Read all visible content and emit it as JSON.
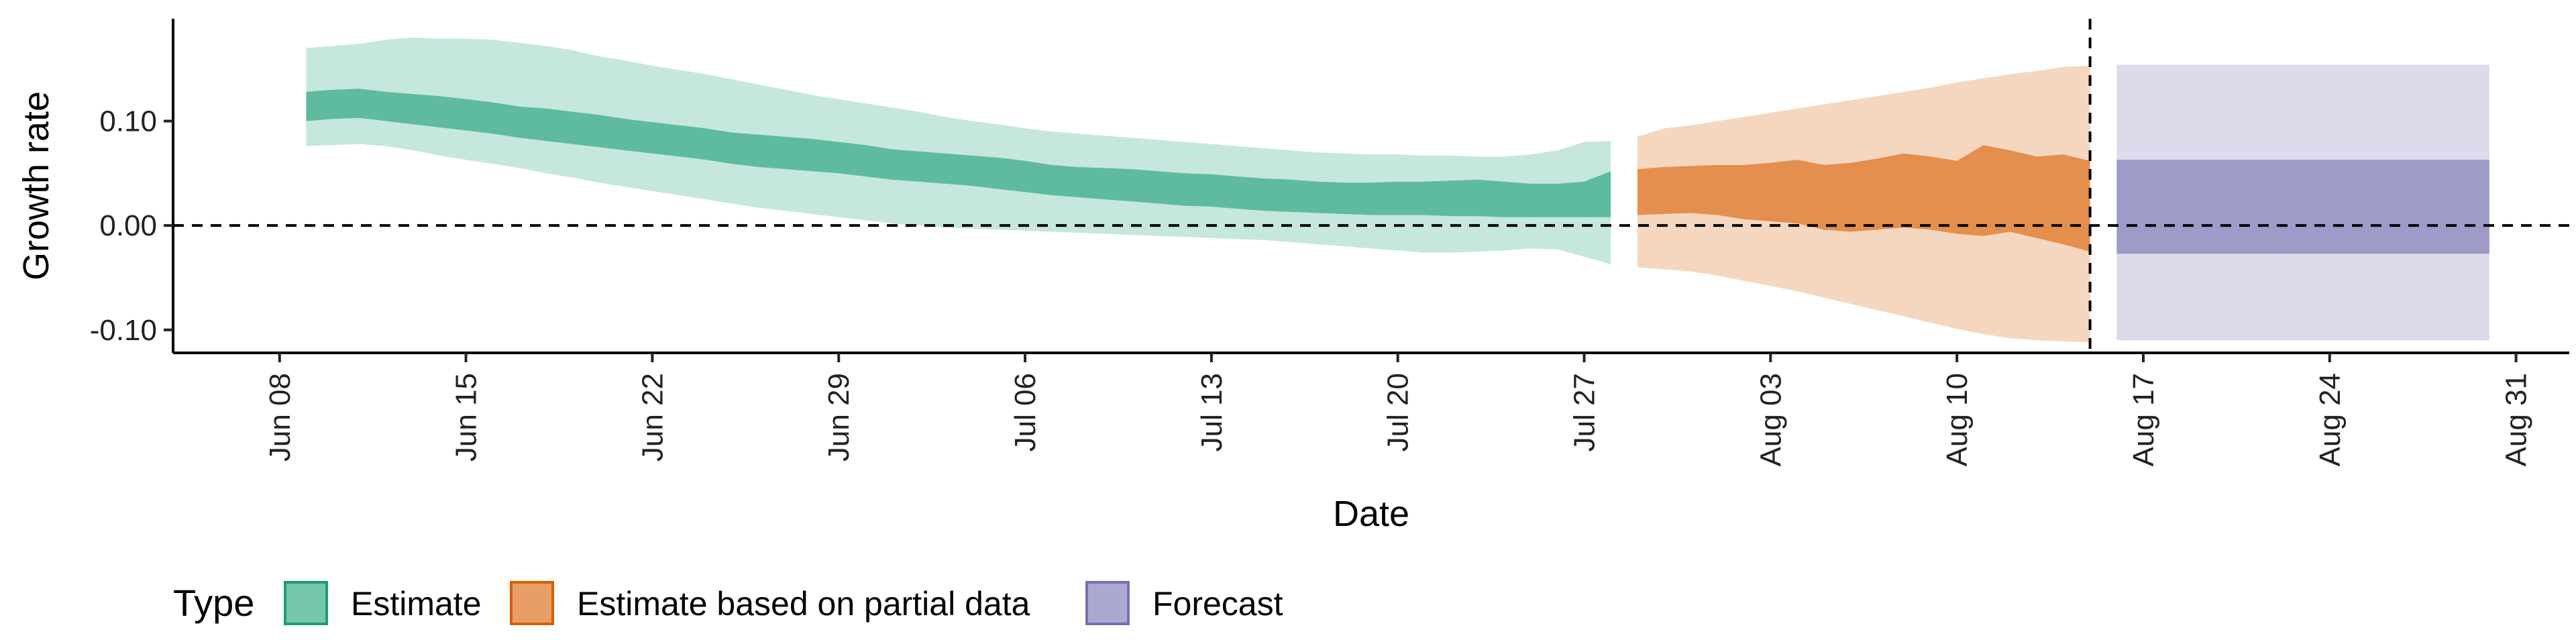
{
  "chart_data": {
    "type": "area",
    "xlabel": "Date",
    "ylabel": "Growth rate",
    "ylim": [
      -0.122,
      0.198
    ],
    "xlim": [
      "2020-06-04",
      "2020-09-02"
    ],
    "y_ticks": [
      -0.1,
      0.0,
      0.1
    ],
    "y_tick_labels": [
      "-0.10",
      "0.00",
      "0.10"
    ],
    "x_ticks": [
      "2020-06-08",
      "2020-06-15",
      "2020-06-22",
      "2020-06-29",
      "2020-07-06",
      "2020-07-13",
      "2020-07-20",
      "2020-07-27",
      "2020-08-03",
      "2020-08-10",
      "2020-08-17",
      "2020-08-24",
      "2020-08-31"
    ],
    "x_tick_labels": [
      "Jun 08",
      "Jun 15",
      "Jun 22",
      "Jun 29",
      "Jul 06",
      "Jul 13",
      "Jul 20",
      "Jul 27",
      "Aug 03",
      "Aug 10",
      "Aug 17",
      "Aug 24",
      "Aug 31"
    ],
    "reference_lines": {
      "horizontal_y": 0.0,
      "vertical_x": "2020-08-15"
    },
    "grid": false,
    "legend_position": "bottom-left",
    "legend_title": "Type",
    "series": [
      {
        "name": "Estimate",
        "color": "#1b9e77",
        "x": [
          "2020-06-09",
          "2020-06-10",
          "2020-06-11",
          "2020-06-12",
          "2020-06-13",
          "2020-06-14",
          "2020-06-15",
          "2020-06-16",
          "2020-06-17",
          "2020-06-18",
          "2020-06-19",
          "2020-06-20",
          "2020-06-21",
          "2020-06-22",
          "2020-06-23",
          "2020-06-24",
          "2020-06-25",
          "2020-06-26",
          "2020-06-27",
          "2020-06-28",
          "2020-06-29",
          "2020-06-30",
          "2020-07-01",
          "2020-07-02",
          "2020-07-03",
          "2020-07-04",
          "2020-07-05",
          "2020-07-06",
          "2020-07-07",
          "2020-07-08",
          "2020-07-09",
          "2020-07-10",
          "2020-07-11",
          "2020-07-12",
          "2020-07-13",
          "2020-07-14",
          "2020-07-15",
          "2020-07-16",
          "2020-07-17",
          "2020-07-18",
          "2020-07-19",
          "2020-07-20",
          "2020-07-21",
          "2020-07-22",
          "2020-07-23",
          "2020-07-24",
          "2020-07-25",
          "2020-07-26",
          "2020-07-27",
          "2020-07-28"
        ],
        "outer_upper": [
          0.17,
          0.172,
          0.174,
          0.178,
          0.18,
          0.179,
          0.179,
          0.178,
          0.175,
          0.172,
          0.168,
          0.162,
          0.158,
          0.153,
          0.149,
          0.145,
          0.14,
          0.135,
          0.13,
          0.125,
          0.121,
          0.117,
          0.113,
          0.109,
          0.104,
          0.1,
          0.097,
          0.093,
          0.09,
          0.088,
          0.086,
          0.084,
          0.082,
          0.08,
          0.078,
          0.076,
          0.074,
          0.072,
          0.07,
          0.069,
          0.068,
          0.068,
          0.067,
          0.067,
          0.066,
          0.066,
          0.068,
          0.072,
          0.08,
          0.081
        ],
        "inner_upper": [
          0.128,
          0.13,
          0.131,
          0.128,
          0.126,
          0.124,
          0.121,
          0.118,
          0.114,
          0.112,
          0.109,
          0.106,
          0.102,
          0.099,
          0.096,
          0.093,
          0.089,
          0.087,
          0.085,
          0.083,
          0.08,
          0.077,
          0.073,
          0.071,
          0.069,
          0.067,
          0.065,
          0.062,
          0.058,
          0.056,
          0.055,
          0.054,
          0.052,
          0.05,
          0.049,
          0.047,
          0.045,
          0.044,
          0.042,
          0.041,
          0.041,
          0.042,
          0.042,
          0.043,
          0.044,
          0.042,
          0.04,
          0.04,
          0.042,
          0.052
        ],
        "inner_lower": [
          0.1,
          0.102,
          0.103,
          0.1,
          0.097,
          0.094,
          0.091,
          0.088,
          0.084,
          0.081,
          0.078,
          0.075,
          0.072,
          0.069,
          0.066,
          0.063,
          0.059,
          0.056,
          0.054,
          0.052,
          0.05,
          0.047,
          0.044,
          0.042,
          0.04,
          0.038,
          0.035,
          0.032,
          0.029,
          0.027,
          0.025,
          0.023,
          0.021,
          0.019,
          0.018,
          0.016,
          0.014,
          0.013,
          0.012,
          0.011,
          0.01,
          0.01,
          0.01,
          0.009,
          0.009,
          0.008,
          0.008,
          0.008,
          0.008,
          0.008
        ],
        "outer_lower": [
          0.076,
          0.077,
          0.078,
          0.076,
          0.072,
          0.067,
          0.063,
          0.059,
          0.055,
          0.05,
          0.046,
          0.041,
          0.037,
          0.033,
          0.029,
          0.025,
          0.021,
          0.017,
          0.014,
          0.011,
          0.008,
          0.005,
          0.002,
          0.0,
          -0.002,
          -0.003,
          -0.004,
          -0.005,
          -0.006,
          -0.007,
          -0.008,
          -0.009,
          -0.01,
          -0.011,
          -0.012,
          -0.013,
          -0.014,
          -0.016,
          -0.018,
          -0.02,
          -0.022,
          -0.024,
          -0.026,
          -0.026,
          -0.025,
          -0.024,
          -0.022,
          -0.023,
          -0.03,
          -0.037
        ]
      },
      {
        "name": "Estimate based on partial data",
        "color": "#d95f02",
        "x": [
          "2020-07-29",
          "2020-07-30",
          "2020-07-31",
          "2020-08-01",
          "2020-08-02",
          "2020-08-03",
          "2020-08-04",
          "2020-08-05",
          "2020-08-06",
          "2020-08-07",
          "2020-08-08",
          "2020-08-09",
          "2020-08-10",
          "2020-08-11",
          "2020-08-12",
          "2020-08-13",
          "2020-08-14",
          "2020-08-15"
        ],
        "outer_upper": [
          0.085,
          0.093,
          0.096,
          0.1,
          0.104,
          0.108,
          0.112,
          0.116,
          0.12,
          0.124,
          0.128,
          0.132,
          0.137,
          0.141,
          0.145,
          0.148,
          0.152,
          0.153
        ],
        "inner_upper": [
          0.054,
          0.056,
          0.057,
          0.058,
          0.058,
          0.06,
          0.063,
          0.058,
          0.06,
          0.064,
          0.069,
          0.066,
          0.062,
          0.077,
          0.072,
          0.066,
          0.068,
          0.062
        ],
        "inner_lower": [
          0.01,
          0.011,
          0.012,
          0.01,
          0.006,
          0.004,
          0.002,
          -0.004,
          -0.006,
          -0.004,
          -0.002,
          -0.004,
          -0.008,
          -0.01,
          -0.006,
          -0.012,
          -0.018,
          -0.025
        ],
        "outer_lower": [
          -0.04,
          -0.042,
          -0.044,
          -0.048,
          -0.053,
          -0.058,
          -0.063,
          -0.069,
          -0.075,
          -0.081,
          -0.087,
          -0.093,
          -0.099,
          -0.104,
          -0.108,
          -0.11,
          -0.111,
          -0.112
        ]
      },
      {
        "name": "Forecast",
        "color": "#7570b3",
        "x": [
          "2020-08-16",
          "2020-08-30"
        ],
        "outer_upper": [
          0.154,
          0.154
        ],
        "inner_upper": [
          0.063,
          0.063
        ],
        "inner_lower": [
          -0.027,
          -0.027
        ],
        "outer_lower": [
          -0.11,
          -0.11
        ]
      }
    ]
  }
}
